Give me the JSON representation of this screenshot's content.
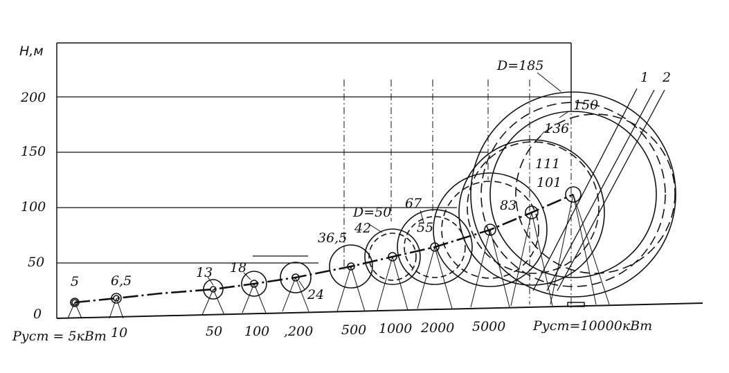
{
  "figure": {
    "y_axis_label": "Н,м",
    "y_ticks": [
      "0",
      "50",
      "100",
      "150",
      "200"
    ],
    "bottom_left_label": "Руст = 5кВт",
    "bottom_right_label": "Руст=10000кВт",
    "curve_labels": [
      "1",
      "2"
    ],
    "turbines": [
      {
        "power": "5",
        "diam": "5"
      },
      {
        "power": "10",
        "diam": "6,5"
      },
      {
        "power": "50",
        "diam": "13"
      },
      {
        "power": "100",
        "diam": "18"
      },
      {
        "power": ",200",
        "diam": "24"
      },
      {
        "power": "500",
        "diam": "36,5"
      },
      {
        "power": "1000",
        "diam": "42",
        "d_label": "D=50"
      },
      {
        "power": "2000",
        "diam": "55",
        "d_label": "67"
      },
      {
        "power": "5000",
        "diam": "83"
      },
      {
        "power": "",
        "diam": "101"
      },
      {
        "power": "",
        "diam": "111"
      },
      {
        "power": "",
        "diam": "136"
      },
      {
        "power": "",
        "diam": "150"
      },
      {
        "power": "",
        "diam": "D=185"
      }
    ]
  }
}
